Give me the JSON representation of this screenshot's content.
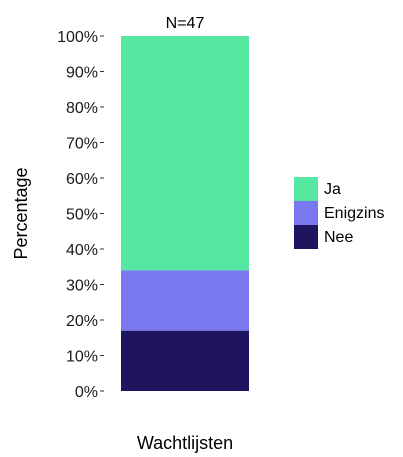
{
  "chart_data": {
    "type": "bar",
    "stacked": true,
    "categories": [
      "Wachtlijsten"
    ],
    "series": [
      {
        "name": "Nee",
        "values": [
          17
        ],
        "color": "#1e155e"
      },
      {
        "name": "Enigzins",
        "values": [
          17
        ],
        "color": "#7a78ef"
      },
      {
        "name": "Ja",
        "values": [
          66
        ],
        "color": "#55e6a1"
      }
    ],
    "annotation": "N=47",
    "xlabel": "",
    "ylabel": "Percentage",
    "ylim": [
      0,
      100
    ],
    "yticks": [
      "0%",
      "10%",
      "20%",
      "30%",
      "40%",
      "50%",
      "60%",
      "70%",
      "80%",
      "90%",
      "100%"
    ],
    "legend_labels": [
      "Ja",
      "Enigzins",
      "Nee"
    ],
    "legend_position": "right",
    "grid": false
  }
}
